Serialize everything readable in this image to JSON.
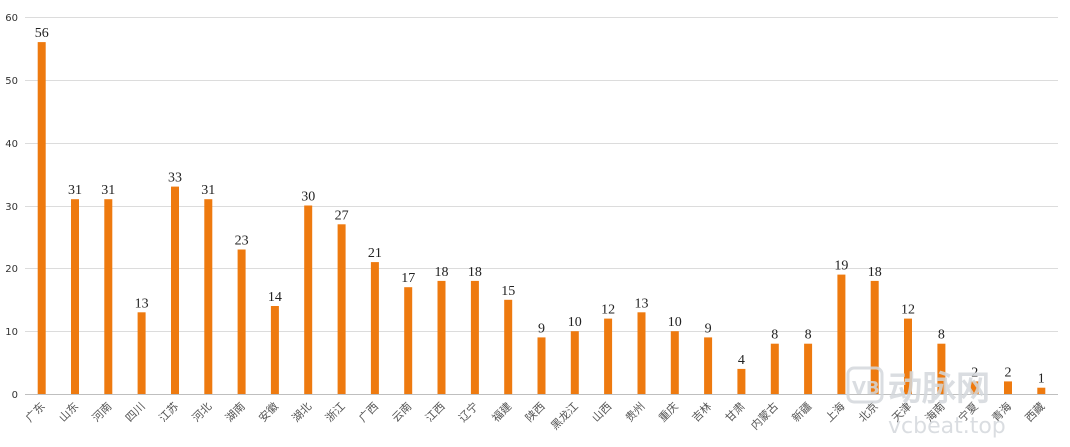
{
  "chart_data": {
    "type": "bar",
    "categories": [
      "广东",
      "山东",
      "河南",
      "四川",
      "江苏",
      "河北",
      "湖南",
      "安徽",
      "湖北",
      "浙江",
      "广西",
      "云南",
      "江西",
      "辽宁",
      "福建",
      "陕西",
      "黑龙江",
      "山西",
      "贵州",
      "重庆",
      "吉林",
      "甘肃",
      "内蒙古",
      "新疆",
      "上海",
      "北京",
      "天津",
      "海南",
      "宁夏",
      "青海",
      "西藏"
    ],
    "values": [
      56,
      31,
      31,
      13,
      33,
      31,
      23,
      14,
      30,
      27,
      21,
      17,
      18,
      18,
      15,
      9,
      10,
      12,
      13,
      10,
      9,
      4,
      8,
      8,
      19,
      18,
      12,
      8,
      2,
      2,
      1
    ],
    "ylim": [
      0,
      60
    ],
    "yticks": [
      0,
      10,
      20,
      30,
      40,
      50,
      60
    ],
    "grid": true,
    "bar_color": "#ee7a0f",
    "data_labels": true
  },
  "watermark": {
    "logo_mark": "VB",
    "brand": "动脉网",
    "domain": "vcbeat.top"
  }
}
